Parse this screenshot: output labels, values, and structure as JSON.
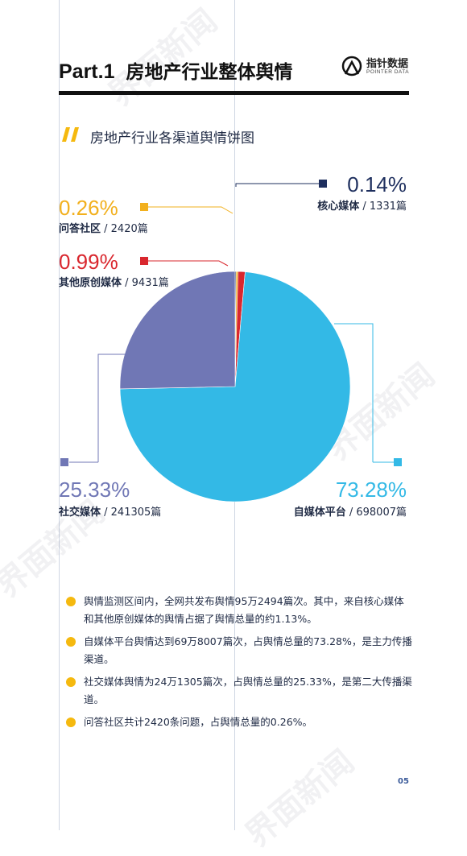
{
  "header": {
    "part": "Part.1",
    "title": "房地产行业整体舆情",
    "logo_cn": "指针数据",
    "logo_en": "POINTER DATA"
  },
  "section": {
    "title": "房地产行业各渠道舆情饼图"
  },
  "colors": {
    "accent": "#f5b90f",
    "core": "#1e2f5e",
    "qa": "#f2b01e",
    "other": "#d9272e",
    "social": "#7077b5",
    "self": "#33b9e6"
  },
  "chart_data": {
    "type": "pie",
    "slices": [
      {
        "name": "核心媒体",
        "count": "1331篇",
        "value": 0.14,
        "label": "0.14%",
        "color": "#1e2f5e"
      },
      {
        "name": "问答社区",
        "count": "2420篇",
        "value": 0.26,
        "label": "0.26%",
        "color": "#f2b01e"
      },
      {
        "name": "其他原创媒体",
        "count": "9431篇",
        "value": 0.99,
        "label": "0.99%",
        "color": "#d9272e"
      },
      {
        "name": "自媒体平台",
        "count": "698007篇",
        "value": 73.28,
        "label": "73.28%",
        "color": "#33b9e6"
      },
      {
        "name": "社交媒体",
        "count": "241305篇",
        "value": 25.33,
        "label": "25.33%",
        "color": "#7077b5"
      }
    ]
  },
  "bullets": [
    "舆情监测区间内，全网共发布舆情95万2494篇次。其中，来自核心媒体和其他原创媒体的舆情占据了舆情总量的约1.13%。",
    "自媒体平台舆情达到69万8007篇次，占舆情总量的73.28%，是主力传播渠道。",
    "社交媒体舆情为24万1305篇次，占舆情总量的25.33%，是第二大传播渠道。",
    "问答社区共计2420条问题，占舆情总量的0.26%。"
  ],
  "watermark": {
    "brand": "界面新闻"
  },
  "page_number": "05"
}
